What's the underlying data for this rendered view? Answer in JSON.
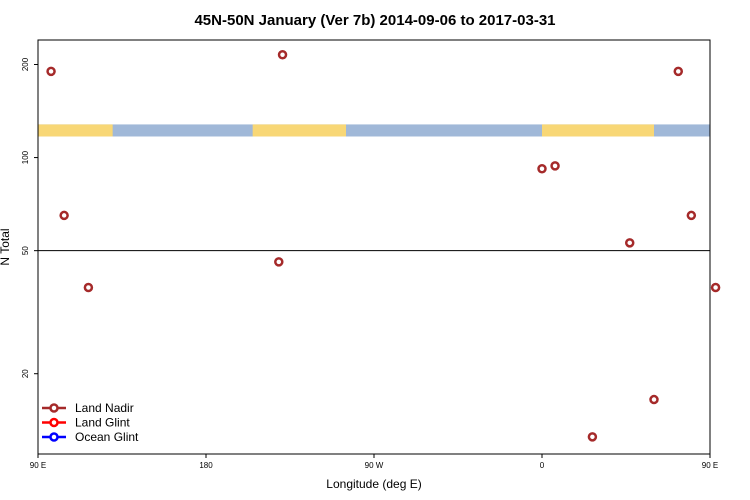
{
  "chart_data": {
    "type": "scatter",
    "title": "45N-50N January (Ver 7b)   2014-09-06 to 2017-03-31",
    "xlabel": "Longitude (deg E)",
    "ylabel": "N Total",
    "x_scale": "longitude",
    "y_scale": "log",
    "xlim": [
      90,
      450
    ],
    "ylim": [
      11,
      240
    ],
    "x_ticks": [
      {
        "value": 90,
        "label": "90 E"
      },
      {
        "value": 180,
        "label": "180"
      },
      {
        "value": 270,
        "label": "90 W"
      },
      {
        "value": 360,
        "label": "0"
      },
      {
        "value": 450,
        "label": "90 E"
      },
      {
        "value": 540,
        "label": "180"
      }
    ],
    "y_ticks": [
      {
        "value": 20,
        "label": "20"
      },
      {
        "value": 50,
        "label": "50"
      },
      {
        "value": 100,
        "label": "100"
      },
      {
        "value": 200,
        "label": "200"
      }
    ],
    "reference_line_y": 50,
    "land_band": {
      "y_range": [
        117,
        128
      ],
      "land_color": "#F8D776",
      "ocean_color": "#A0B8D8",
      "land_segments": [
        [
          90,
          130
        ],
        [
          205,
          255
        ],
        [
          360,
          420
        ]
      ]
    },
    "series": [
      {
        "name": "Land Nadir",
        "color": "#A52A2A",
        "points": [
          {
            "x": 97,
            "y": 190
          },
          {
            "x": 104,
            "y": 65
          },
          {
            "x": 117,
            "y": 38
          },
          {
            "x": 219,
            "y": 46
          },
          {
            "x": 221,
            "y": 215
          },
          {
            "x": 360,
            "y": 92
          },
          {
            "x": 367,
            "y": 94
          },
          {
            "x": 387,
            "y": 12.5
          },
          {
            "x": 407,
            "y": 53
          },
          {
            "x": 420,
            "y": 16.5
          },
          {
            "x": 433,
            "y": 190
          },
          {
            "x": 440,
            "y": 65
          },
          {
            "x": 453,
            "y": 38
          }
        ]
      },
      {
        "name": "Land Glint",
        "color": "#FF0000",
        "points": []
      },
      {
        "name": "Ocean Glint",
        "color": "#0000FF",
        "points": []
      }
    ],
    "legend_position": "bottom-left",
    "grid": false
  }
}
